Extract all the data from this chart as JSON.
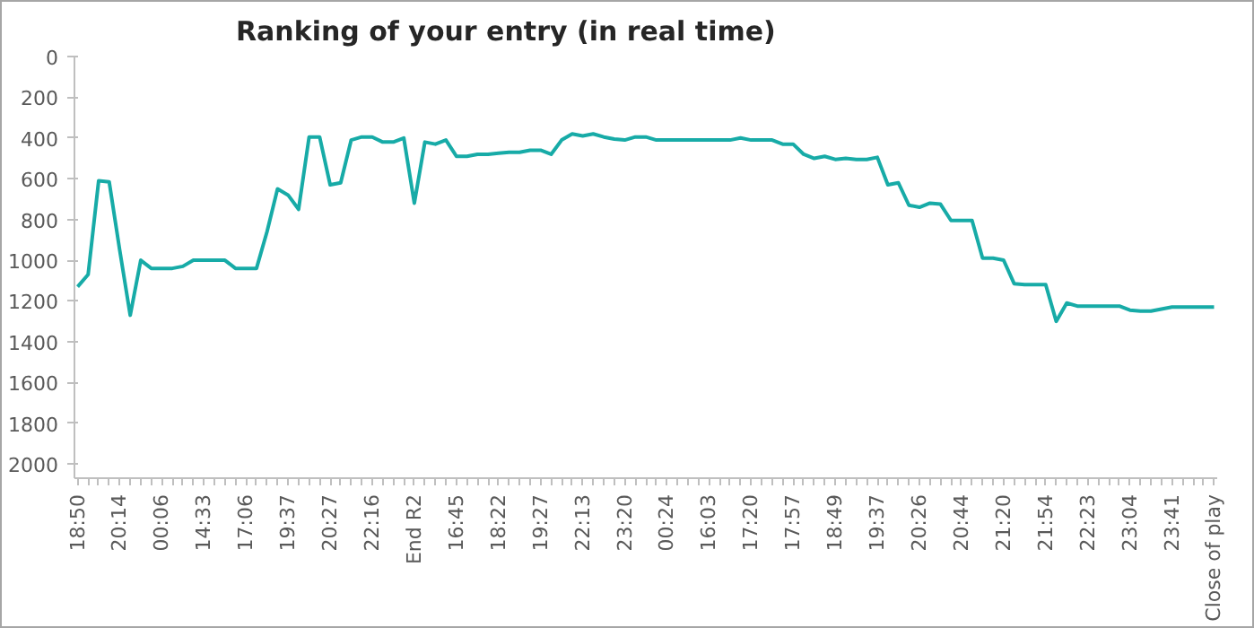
{
  "chart_data": {
    "type": "line",
    "title": "Ranking of your entry (in real time)",
    "categories": [
      "18:50",
      null,
      null,
      null,
      "20:14",
      null,
      null,
      null,
      "00:06",
      null,
      null,
      null,
      "14:33",
      null,
      null,
      null,
      "17:06",
      null,
      null,
      null,
      "19:37",
      null,
      null,
      null,
      "20:27",
      null,
      null,
      null,
      "22:16",
      null,
      null,
      null,
      "End R2",
      null,
      null,
      null,
      "16:45",
      null,
      null,
      null,
      "18:22",
      null,
      null,
      null,
      "19:27",
      null,
      null,
      null,
      "22:13",
      null,
      null,
      null,
      "23:20",
      null,
      null,
      null,
      "00:24",
      null,
      null,
      null,
      "16:03",
      null,
      null,
      null,
      "17:20",
      null,
      null,
      null,
      "17:57",
      null,
      null,
      null,
      "18:49",
      null,
      null,
      null,
      "19:37",
      null,
      null,
      null,
      "20:26",
      null,
      null,
      null,
      "20:44",
      null,
      null,
      null,
      "21:20",
      null,
      null,
      null,
      "21:54",
      null,
      null,
      null,
      "22:23",
      null,
      null,
      null,
      "23:04",
      null,
      null,
      null,
      "23:41",
      null,
      null,
      null,
      "Close of play"
    ],
    "series": [
      {
        "color": "#17aba7",
        "values": [
          1130,
          1070,
          610,
          615,
          950,
          1270,
          1000,
          1040,
          1040,
          1040,
          1030,
          1000,
          1000,
          1000,
          1000,
          1040,
          1040,
          1040,
          860,
          650,
          680,
          750,
          395,
          395,
          630,
          620,
          410,
          395,
          395,
          420,
          420,
          400,
          720,
          420,
          430,
          410,
          490,
          490,
          480,
          480,
          475,
          470,
          470,
          460,
          460,
          480,
          410,
          380,
          390,
          380,
          395,
          405,
          410,
          395,
          395,
          410,
          410,
          410,
          410,
          410,
          410,
          410,
          410,
          400,
          410,
          410,
          410,
          430,
          430,
          480,
          500,
          490,
          505,
          500,
          505,
          505,
          495,
          630,
          620,
          730,
          740,
          720,
          725,
          805,
          805,
          805,
          990,
          990,
          1000,
          1115,
          1120,
          1120,
          1120,
          1300,
          1210,
          1225,
          1225,
          1225,
          1225,
          1225,
          1245,
          1250,
          1250,
          1240,
          1230,
          1230,
          1230,
          1230,
          1230
        ]
      }
    ],
    "ylim": [
      2070,
      0
    ],
    "yticks": [
      0,
      200,
      400,
      600,
      800,
      1000,
      1200,
      1400,
      1600,
      1800,
      2000
    ],
    "grid": false,
    "marker": "none",
    "line_style": "solid"
  }
}
